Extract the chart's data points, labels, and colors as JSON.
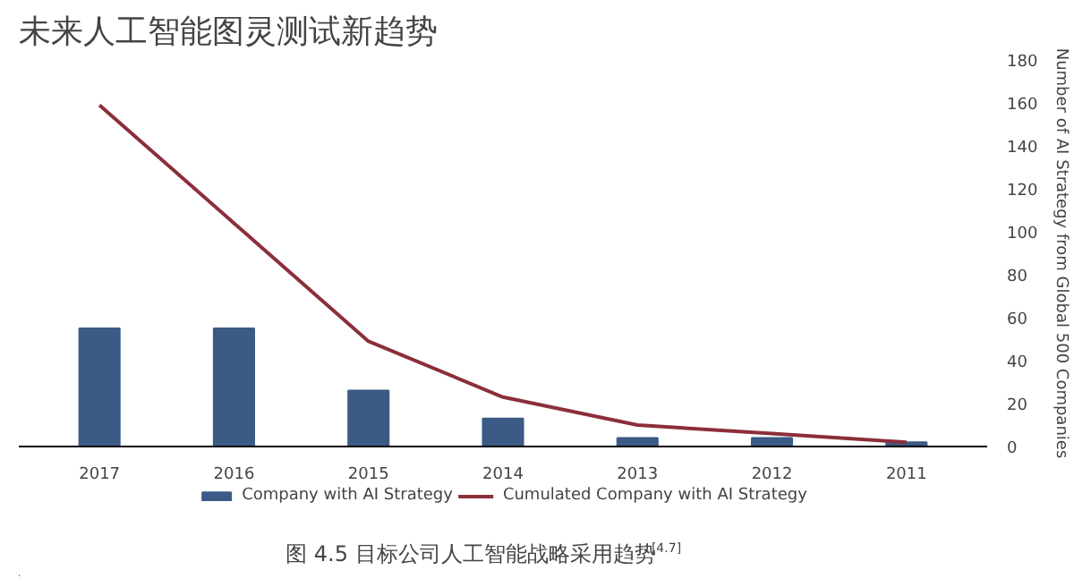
{
  "chart_data": {
    "type": "bar",
    "title": "未来人工智能图灵测试新趋势",
    "categories": [
      "2017",
      "2016",
      "2015",
      "2014",
      "2013",
      "2012",
      "2011"
    ],
    "series": [
      {
        "name": "Company with AI Strategy",
        "color": "#3b5b86",
        "values": [
          55,
          55,
          26,
          13,
          4,
          4,
          2
        ]
      },
      {
        "name": "Cumulated Company with AI Strategy",
        "type": "line",
        "color": "#8b2f3a",
        "values": [
          159,
          104,
          49,
          23,
          10,
          6,
          2
        ]
      }
    ],
    "ylabel": "Number of AI Strategy from Global 500 Companies",
    "ylim": [
      0,
      180
    ],
    "yticks": [
      0,
      20,
      40,
      60,
      80,
      100,
      120,
      140,
      160,
      180
    ],
    "grid": false,
    "legend": "bottom",
    "marker": "none",
    "line_style": "solid",
    "annotations": [
      "图 4.5 目标公司人工智能战略采用趋势$^{[4.7]}$"
    ]
  }
}
